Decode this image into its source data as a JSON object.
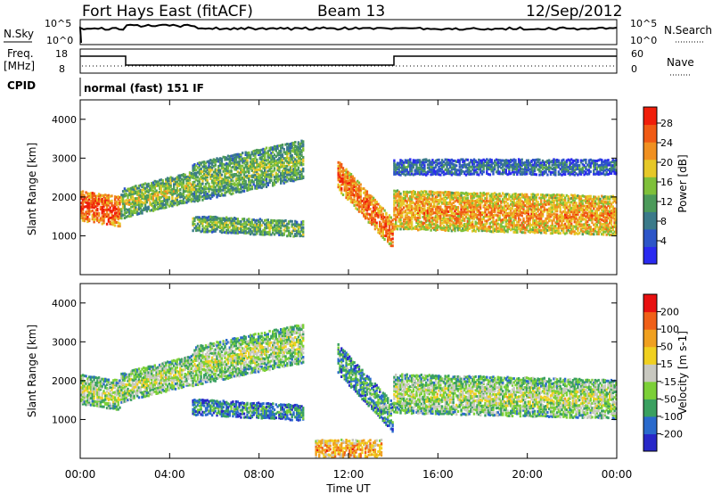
{
  "header": {
    "title": "Fort Hays East (fitACF)",
    "beam": "Beam 13",
    "date": "12/Sep/2012"
  },
  "status_panels": {
    "nsky_label": "N.Sky",
    "nsky_ticks": [
      "10^5",
      "10^0"
    ],
    "nsearch_label": "N.Search",
    "nsearch_ticks": [
      "10^5",
      "10^0"
    ],
    "freq_label": "Freq.",
    "freq_unit": "[MHz]",
    "freq_ticks": [
      "18",
      "8"
    ],
    "nave_label": "Nave",
    "nave_ticks": [
      "60",
      "0"
    ],
    "cpid_label": "CPID",
    "cpid_value": "normal (fast) 151 IF"
  },
  "chart_data": [
    {
      "type": "heatmap",
      "name": "power-panel",
      "ylabel": "Slant Range [km]",
      "y_ticks": [
        "1000",
        "2000",
        "3000",
        "4000"
      ],
      "ylim": [
        0,
        4500
      ],
      "xlim": [
        0,
        24
      ],
      "colorbar_label": "Power [dB]",
      "colorbar_ticks": [
        "4",
        "8",
        "12",
        "16",
        "20",
        "24",
        "28"
      ],
      "colors": [
        "#2a2af0",
        "#2d55c8",
        "#3b7a8a",
        "#4c9a5a",
        "#7fc03a",
        "#e6c828",
        "#f09020",
        "#f05a14",
        "#f01e0a"
      ],
      "bands": [
        {
          "t": [
            0.0,
            1.8
          ],
          "r_center": [
            1800,
            1650
          ],
          "width": 350,
          "level": 0.9
        },
        {
          "t": [
            1.8,
            5.0
          ],
          "r_center": [
            1850,
            2300
          ],
          "width": 350,
          "level": 0.55
        },
        {
          "t": [
            5.0,
            10.0
          ],
          "r_center": [
            2400,
            3000
          ],
          "width": 500,
          "level": 0.5
        },
        {
          "t": [
            5.0,
            10.0
          ],
          "r_center": [
            1350,
            1200
          ],
          "width": 150,
          "level": 0.5
        },
        {
          "t": [
            11.5,
            14.0
          ],
          "r_center": [
            2600,
            1050
          ],
          "width": 350,
          "level": 0.85
        },
        {
          "t": [
            14.0,
            24.0
          ],
          "r_center": [
            1700,
            1550
          ],
          "width": 450,
          "level": 0.75
        },
        {
          "t": [
            14.0,
            24.0
          ],
          "r_center": [
            2800,
            2800
          ],
          "width": 200,
          "level": 0.3
        }
      ]
    },
    {
      "type": "heatmap",
      "name": "velocity-panel",
      "ylabel": "Slant Range [km]",
      "y_ticks": [
        "1000",
        "2000",
        "3000",
        "4000"
      ],
      "ylim": [
        0,
        4500
      ],
      "colorbar_label": "Velocity [m s-1]",
      "colorbar_ticks": [
        "200",
        "100",
        "50",
        "15",
        "-15",
        "-50",
        "-100",
        "-200"
      ],
      "colors": [
        "#2828c8",
        "#2a6acc",
        "#3aa060",
        "#7cd038",
        "#c8c8c0",
        "#f0d020",
        "#f0a020",
        "#f06018",
        "#e81010"
      ],
      "bands": [
        {
          "t": [
            0.0,
            1.8
          ],
          "r_center": [
            1800,
            1650
          ],
          "width": 350,
          "level": 0.5
        },
        {
          "t": [
            1.8,
            5.0
          ],
          "r_center": [
            1850,
            2300
          ],
          "width": 350,
          "level": 0.5
        },
        {
          "t": [
            5.0,
            10.0
          ],
          "r_center": [
            2400,
            3000
          ],
          "width": 500,
          "level": 0.5
        },
        {
          "t": [
            5.0,
            10.0
          ],
          "r_center": [
            1350,
            1200
          ],
          "width": 150,
          "level": 0.3
        },
        {
          "t": [
            11.5,
            14.0
          ],
          "r_center": [
            2600,
            1050
          ],
          "width": 350,
          "level": 0.35
        },
        {
          "t": [
            14.0,
            24.0
          ],
          "r_center": [
            1700,
            1550
          ],
          "width": 450,
          "level": 0.5
        },
        {
          "t": [
            10.5,
            13.5
          ],
          "r_center": [
            250,
            250
          ],
          "width": 250,
          "level": 0.75
        }
      ]
    }
  ],
  "x_axis": {
    "label": "Time UT",
    "ticks": [
      "00:00",
      "04:00",
      "08:00",
      "12:00",
      "16:00",
      "20:00",
      "00:00"
    ]
  }
}
